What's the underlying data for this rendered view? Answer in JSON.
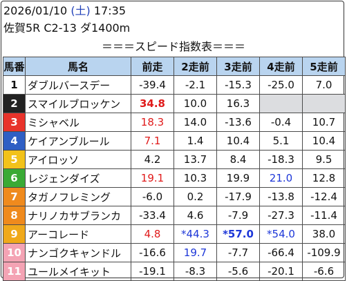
{
  "header": {
    "date": "2026/01/10",
    "day_of_week": "(土)",
    "time": "17:35",
    "race_info": "佐賀5R C2-13 ダ1400m"
  },
  "caption": "＝＝＝スピード指数表＝＝＝",
  "columns": [
    "馬番",
    "馬名",
    "前走",
    "2走前",
    "3走前",
    "4走前",
    "5走前"
  ],
  "colors": {
    "header_bg": "#b9d4ef",
    "red": "#e01a1a",
    "blue": "#1d37d8",
    "empty_cell": "#dcdde0"
  },
  "rows": [
    {
      "num": "1",
      "bg": "#ffffff",
      "fg": "#111111",
      "name": "ダブルバースデー",
      "cells": [
        {
          "v": "-39.4"
        },
        {
          "v": "-2.1"
        },
        {
          "v": "-15.3"
        },
        {
          "v": "-25.0"
        },
        {
          "v": "7.0"
        }
      ]
    },
    {
      "num": "2",
      "bg": "#222222",
      "fg": "#ffffff",
      "name": "スマイルブロッケン",
      "cells": [
        {
          "v": "34.8",
          "color": "red",
          "bold": true
        },
        {
          "v": "10.0"
        },
        {
          "v": "16.3"
        },
        {
          "v": "",
          "empty": true
        },
        {
          "v": "",
          "empty": true
        }
      ]
    },
    {
      "num": "3",
      "bg": "#e8332b",
      "fg": "#ffffff",
      "name": "ミシャベル",
      "cells": [
        {
          "v": "18.3",
          "color": "red"
        },
        {
          "v": "14.0"
        },
        {
          "v": "-13.6"
        },
        {
          "v": "-0.4"
        },
        {
          "v": "10.7"
        }
      ]
    },
    {
      "num": "4",
      "bg": "#2f5fc4",
      "fg": "#ffffff",
      "name": "ケイアンブルール",
      "cells": [
        {
          "v": "7.1",
          "color": "red"
        },
        {
          "v": "1.4"
        },
        {
          "v": "10.4"
        },
        {
          "v": "5.1"
        },
        {
          "v": "10.4"
        }
      ]
    },
    {
      "num": "5",
      "bg": "#f2c21a",
      "fg": "#ffffff",
      "name": "アイロッソ",
      "cells": [
        {
          "v": "4.2"
        },
        {
          "v": "13.7"
        },
        {
          "v": "8.4"
        },
        {
          "v": "-18.3"
        },
        {
          "v": "9.5"
        }
      ]
    },
    {
      "num": "6",
      "bg": "#3aaa35",
      "fg": "#ffffff",
      "name": "レジェンダイズ",
      "cells": [
        {
          "v": "19.1",
          "color": "red"
        },
        {
          "v": "10.3"
        },
        {
          "v": "19.9"
        },
        {
          "v": "21.0",
          "color": "blue"
        },
        {
          "v": "12.8"
        }
      ]
    },
    {
      "num": "7",
      "bg": "#ef8a1d",
      "fg": "#ffffff",
      "name": "タガノフレミング",
      "cells": [
        {
          "v": "-6.0"
        },
        {
          "v": "0.2"
        },
        {
          "v": "-17.9"
        },
        {
          "v": "-13.8"
        },
        {
          "v": "-12.4"
        }
      ]
    },
    {
      "num": "8",
      "bg": "#ef8a1d",
      "fg": "#ffffff",
      "name": "ナリノカサブランカ",
      "cells": [
        {
          "v": "-33.4"
        },
        {
          "v": "4.6"
        },
        {
          "v": "-7.9"
        },
        {
          "v": "-27.3"
        },
        {
          "v": "-11.4"
        }
      ]
    },
    {
      "num": "9",
      "bg": "#f0a91b",
      "fg": "#ffffff",
      "name": "アーコレード",
      "cells": [
        {
          "v": "4.8",
          "color": "red"
        },
        {
          "v": "*44.3",
          "color": "blue"
        },
        {
          "v": "*57.0",
          "color": "blue",
          "bold": true
        },
        {
          "v": "*54.0",
          "color": "blue"
        },
        {
          "v": "38.0"
        }
      ]
    },
    {
      "num": "10",
      "bg": "#f4a3b4",
      "fg": "#ffffff",
      "name": "ナンゴクキャンドル",
      "cells": [
        {
          "v": "-16.6"
        },
        {
          "v": "19.7",
          "color": "blue"
        },
        {
          "v": "-7.7"
        },
        {
          "v": "-66.4"
        },
        {
          "v": "-109.9"
        }
      ]
    },
    {
      "num": "11",
      "bg": "#f4a3b4",
      "fg": "#ffffff",
      "name": "ユールメイキット",
      "cells": [
        {
          "v": "-19.1"
        },
        {
          "v": "-8.3"
        },
        {
          "v": "-5.6"
        },
        {
          "v": "-20.1"
        },
        {
          "v": "-6.6"
        }
      ]
    }
  ]
}
